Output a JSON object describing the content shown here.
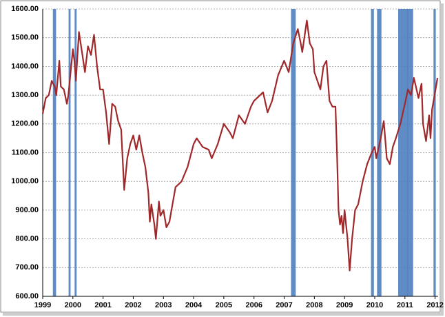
{
  "chart_data": {
    "type": "line",
    "x": [
      1999.0,
      1999.1,
      1999.2,
      1999.3,
      1999.4,
      1999.45,
      1999.55,
      1999.6,
      1999.7,
      1999.8,
      1999.85,
      2000.0,
      2000.05,
      2000.1,
      2000.2,
      2000.3,
      2000.4,
      2000.5,
      2000.6,
      2000.7,
      2000.8,
      2000.9,
      2001.0,
      2001.1,
      2001.2,
      2001.3,
      2001.4,
      2001.5,
      2001.6,
      2001.7,
      2001.8,
      2001.9,
      2002.0,
      2002.1,
      2002.2,
      2002.3,
      2002.4,
      2002.5,
      2002.55,
      2002.6,
      2002.7,
      2002.75,
      2002.85,
      2002.9,
      2003.0,
      2003.1,
      2003.2,
      2003.3,
      2003.4,
      2003.5,
      2003.6,
      2003.8,
      2004.0,
      2004.1,
      2004.3,
      2004.5,
      2004.6,
      2004.8,
      2005.0,
      2005.2,
      2005.3,
      2005.5,
      2005.7,
      2005.9,
      2006.0,
      2006.3,
      2006.45,
      2006.6,
      2006.8,
      2007.0,
      2007.15,
      2007.3,
      2007.45,
      2007.55,
      2007.6,
      2007.75,
      2007.85,
      2007.95,
      2008.0,
      2008.2,
      2008.3,
      2008.4,
      2008.5,
      2008.6,
      2008.7,
      2008.75,
      2008.8,
      2008.85,
      2008.9,
      2008.95,
      2009.0,
      2009.1,
      2009.17,
      2009.25,
      2009.35,
      2009.45,
      2009.6,
      2009.75,
      2009.9,
      2010.0,
      2010.05,
      2010.2,
      2010.3,
      2010.4,
      2010.5,
      2010.6,
      2010.7,
      2010.85,
      2011.0,
      2011.1,
      2011.2,
      2011.3,
      2011.45,
      2011.55,
      2011.6,
      2011.7,
      2011.8,
      2011.85,
      2011.9,
      2012.0,
      2012.08
    ],
    "values": [
      1235,
      1290,
      1300,
      1350,
      1330,
      1300,
      1420,
      1330,
      1320,
      1270,
      1300,
      1460,
      1420,
      1350,
      1520,
      1450,
      1380,
      1470,
      1440,
      1510,
      1400,
      1320,
      1320,
      1240,
      1130,
      1270,
      1260,
      1210,
      1180,
      970,
      1080,
      1130,
      1160,
      1110,
      1160,
      1100,
      1050,
      960,
      860,
      920,
      850,
      800,
      930,
      880,
      900,
      840,
      860,
      920,
      980,
      990,
      1000,
      1050,
      1130,
      1150,
      1120,
      1110,
      1080,
      1130,
      1200,
      1170,
      1150,
      1230,
      1200,
      1260,
      1280,
      1310,
      1240,
      1280,
      1370,
      1420,
      1380,
      1480,
      1530,
      1480,
      1450,
      1560,
      1480,
      1460,
      1380,
      1320,
      1400,
      1420,
      1280,
      1260,
      1260,
      1100,
      900,
      850,
      880,
      820,
      900,
      800,
      690,
      800,
      900,
      920,
      1000,
      1060,
      1100,
      1120,
      1080,
      1150,
      1210,
      1080,
      1060,
      1120,
      1150,
      1200,
      1270,
      1320,
      1300,
      1360,
      1290,
      1340,
      1200,
      1140,
      1230,
      1150,
      1250,
      1310,
      1360
    ],
    "color": "#a0282a",
    "bands": [
      [
        1999.36,
        1999.42
      ],
      [
        1999.88,
        1999.9
      ],
      [
        2000.08,
        2000.1
      ],
      [
        2007.25,
        2007.36
      ],
      [
        2009.9,
        2009.95
      ],
      [
        2010.1,
        2010.2
      ],
      [
        2010.8,
        2011.08
      ],
      [
        2011.1,
        2011.25
      ],
      [
        2011.97,
        2012.0
      ]
    ],
    "band_color": "#4f7fbf",
    "xlim": [
      1999,
      2012.1
    ],
    "xticks": [
      1999,
      2000,
      2001,
      2002,
      2003,
      2004,
      2005,
      2006,
      2007,
      2008,
      2009,
      2010,
      2011,
      2012
    ],
    "ylim": [
      600,
      1600
    ],
    "yticks": [
      {
        "value": 600,
        "label": "600.00"
      },
      {
        "value": 700,
        "label": "700.00"
      },
      {
        "value": 800,
        "label": "800.00"
      },
      {
        "value": 900,
        "label": "900.00"
      },
      {
        "value": 1000,
        "label": "1000.00"
      },
      {
        "value": 1100,
        "label": "1100.00"
      },
      {
        "value": 1200,
        "label": "1200.00"
      },
      {
        "value": 1300,
        "label": "1300.00"
      },
      {
        "value": 1400,
        "label": "1400.00"
      },
      {
        "value": 1500,
        "label": "1500.00"
      },
      {
        "value": 1600,
        "label": "1600.00"
      }
    ],
    "grid": true
  }
}
